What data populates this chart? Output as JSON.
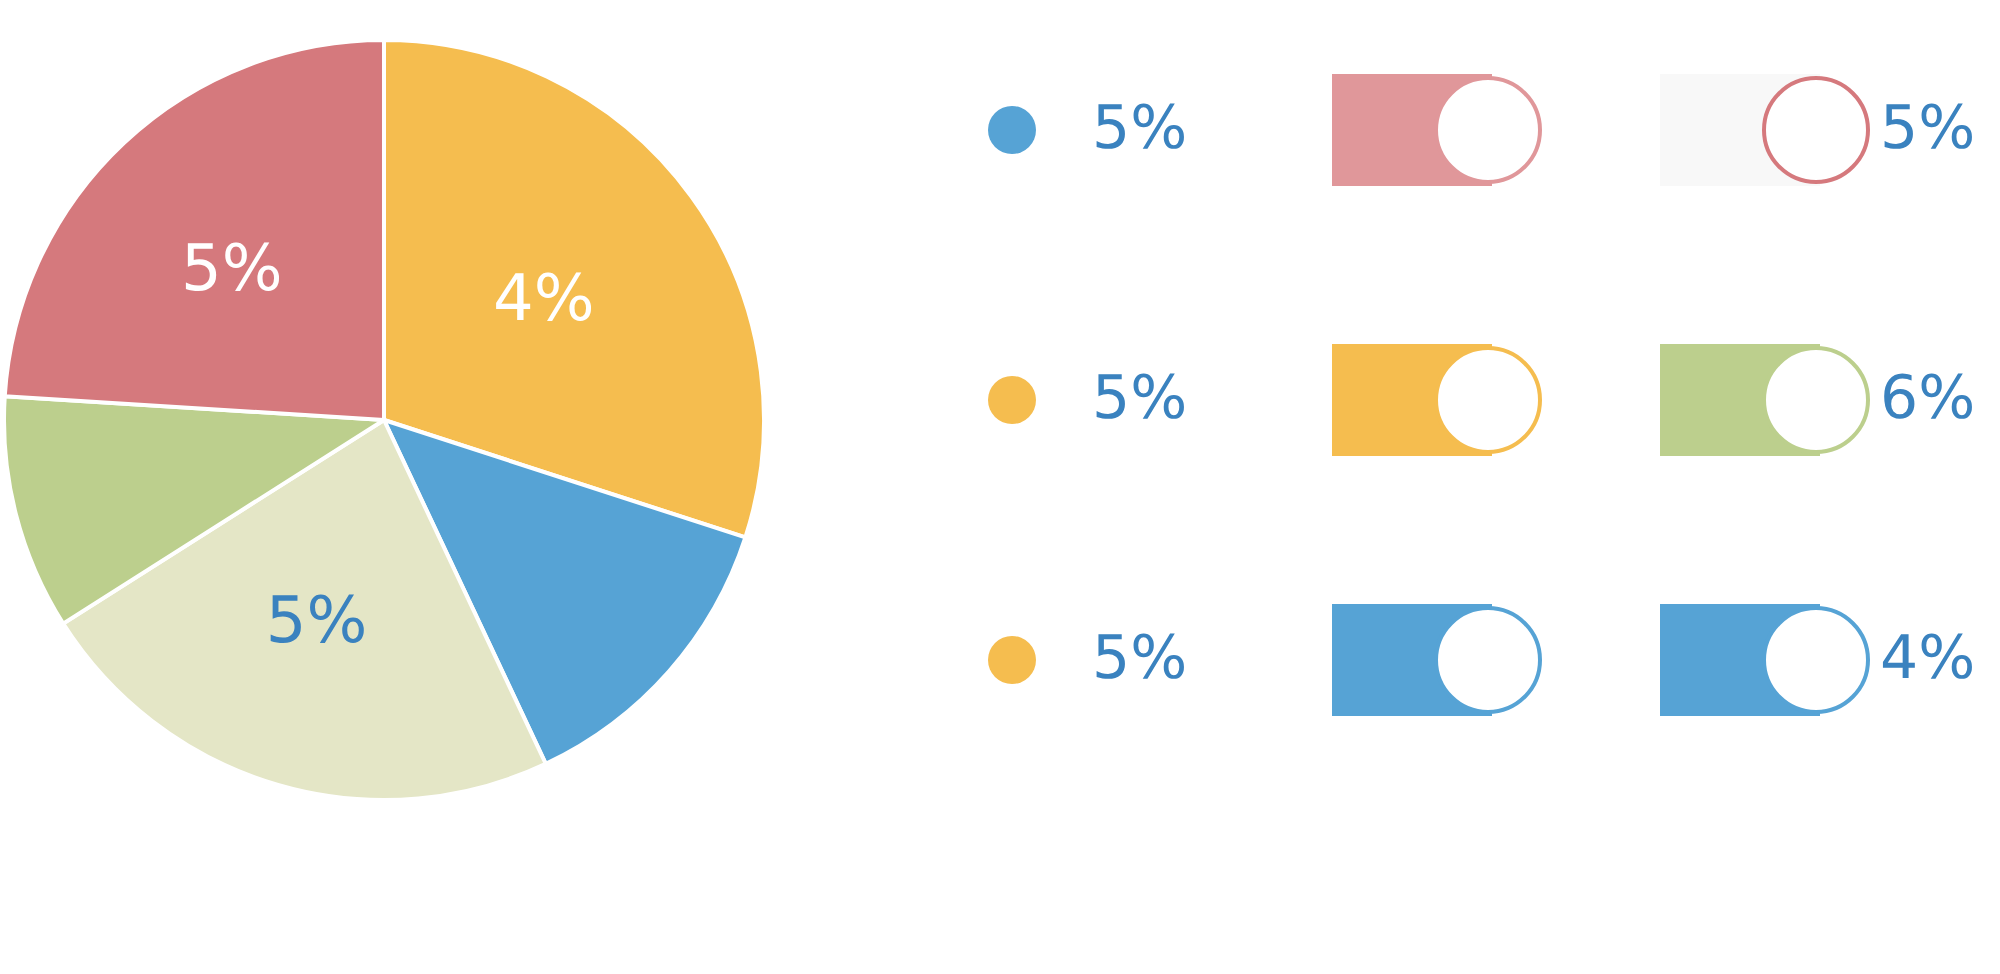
{
  "chart_data": {
    "type": "pie",
    "categories": [
      null,
      null,
      null,
      null,
      null
    ],
    "values": [
      30,
      13,
      23,
      10,
      24
    ],
    "colors": [
      "#f5bd4f",
      "#56a3d5",
      "#e4e6c6",
      "#bccf8d",
      "#d5797d"
    ],
    "annotations": [
      "4%",
      "5%",
      "5%",
      "5%",
      "5%",
      "5%",
      "6%",
      "5%",
      "4%"
    ]
  }
}
